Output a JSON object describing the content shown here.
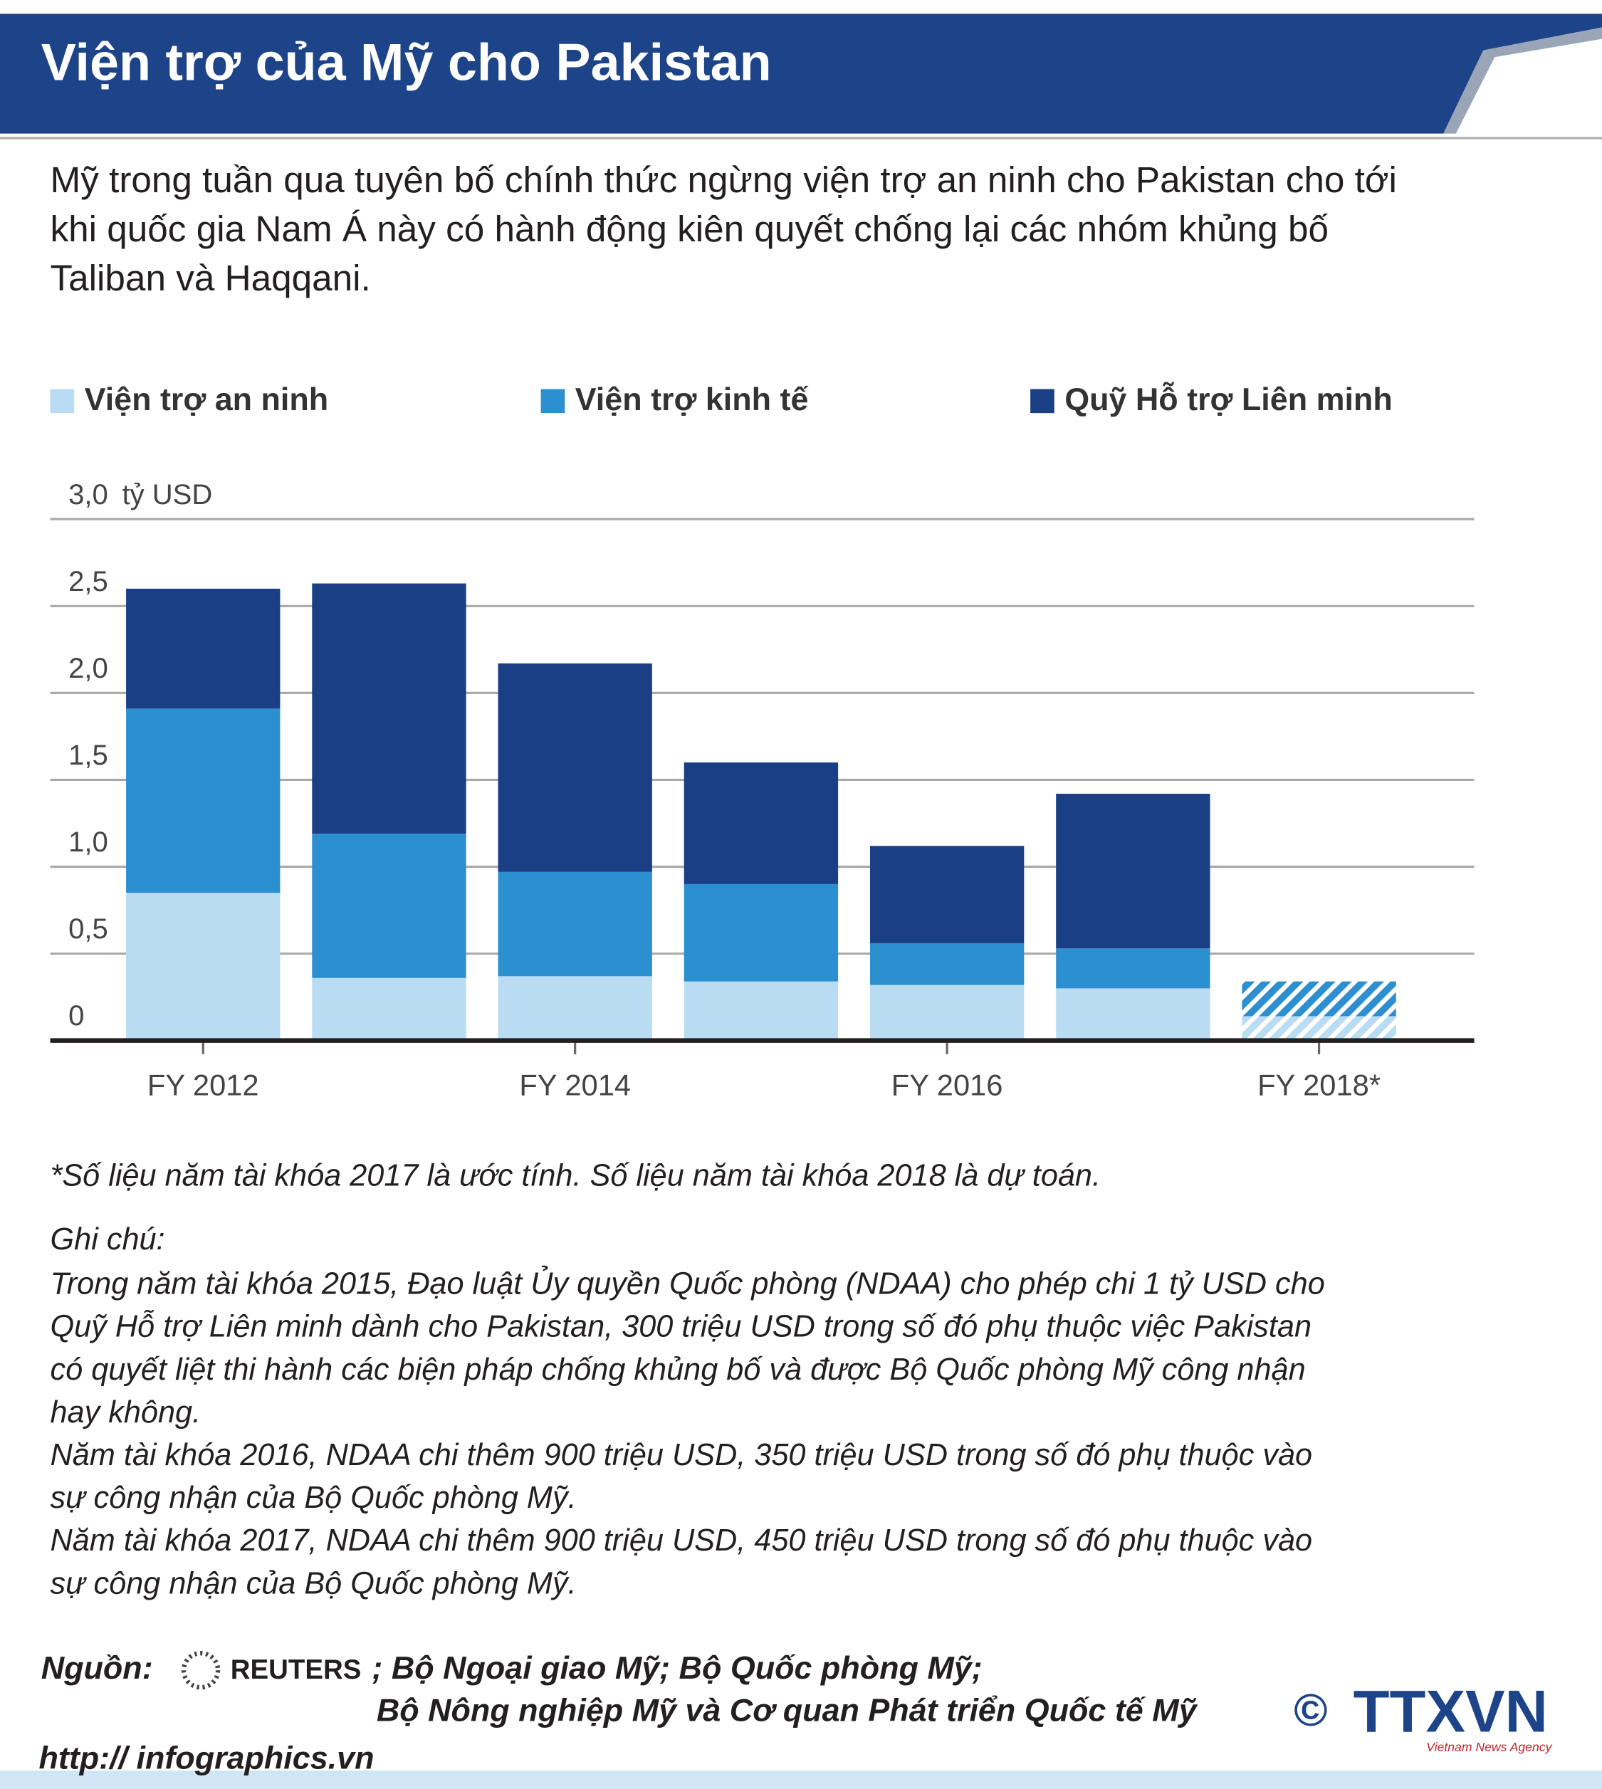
{
  "header": {
    "title": "Viện trợ của Mỹ cho Pakistan"
  },
  "intro": [
    "Mỹ trong tuần qua tuyên bố chính thức ngừng viện trợ an ninh cho Pakistan cho tới",
    "khi quốc gia Nam Á này có hành động kiên quyết chống lại các nhóm khủng bố",
    "Taliban và Haqqani."
  ],
  "chart_data": {
    "type": "stacked-bar",
    "y_unit": "tỷ USD",
    "categories": [
      "FY 2012",
      null,
      "FY 2014",
      null,
      "FY 2016",
      null,
      "FY 2018*"
    ],
    "series": [
      {
        "name": "Viện trợ an ninh",
        "color": "#b9dcf3",
        "values": [
          0.85,
          0.36,
          0.37,
          0.34,
          0.32,
          0.3,
          0.14
        ]
      },
      {
        "name": "Viện trợ kinh tế",
        "color": "#2b8fd0",
        "values": [
          1.06,
          0.83,
          0.6,
          0.56,
          0.24,
          0.23,
          0.2
        ]
      },
      {
        "name": "Quỹ Hỗ trợ Liên minh",
        "color": "#1a3f84",
        "values": [
          0.69,
          1.44,
          1.2,
          0.7,
          0.56,
          0.89,
          0
        ]
      }
    ],
    "hatched": [
      false,
      false,
      false,
      false,
      false,
      false,
      true
    ],
    "ylim": [
      0,
      3
    ],
    "yticks": [
      0,
      {
        "value": 0.5,
        "label": "0,5"
      },
      {
        "value": 1,
        "label": "1,0"
      },
      {
        "value": 1.5,
        "label": "1,5"
      },
      {
        "value": 2,
        "label": "2,0"
      },
      {
        "value": 2.5,
        "label": "2,5"
      },
      {
        "value": 3,
        "label": "3,0"
      }
    ],
    "grid": true
  },
  "footnote": "*Số liệu năm tài khóa 2017 là ước tính. Số liệu năm tài khóa 2018 là dự toán.",
  "notes": {
    "title": "Ghi chú:",
    "lines": [
      "Trong năm tài khóa 2015, Đạo luật Ủy quyền Quốc phòng (NDAA) cho phép chi 1 tỷ USD cho",
      "Quỹ Hỗ trợ Liên minh dành cho Pakistan, 300 triệu USD trong số đó phụ thuộc việc Pakistan",
      "có quyết liệt thi hành các biện pháp chống khủng bố và được Bộ Quốc phòng Mỹ công nhận",
      "hay không.",
      "Năm tài khóa 2016, NDAA chi thêm 900 triệu USD, 350 triệu USD trong số đó phụ thuộc vào",
      "sự công nhận của Bộ Quốc phòng Mỹ.",
      "Năm tài khóa 2017, NDAA chi thêm 900 triệu USD, 450 triệu USD trong số đó phụ thuộc vào",
      "sự công nhận của Bộ Quốc phòng Mỹ."
    ]
  },
  "source": {
    "label": "Nguồn:",
    "reuters": "REUTERS",
    "line1": "; Bộ Ngoại giao Mỹ; Bộ Quốc phòng Mỹ;",
    "line2": "Bộ Nông nghiệp Mỹ và Cơ quan Phát triển Quốc tế Mỹ"
  },
  "footer": {
    "url": "http:// infographics.vn",
    "copyright": "©",
    "logo": "TTXVN",
    "agency": "Vietnam News Agency"
  }
}
